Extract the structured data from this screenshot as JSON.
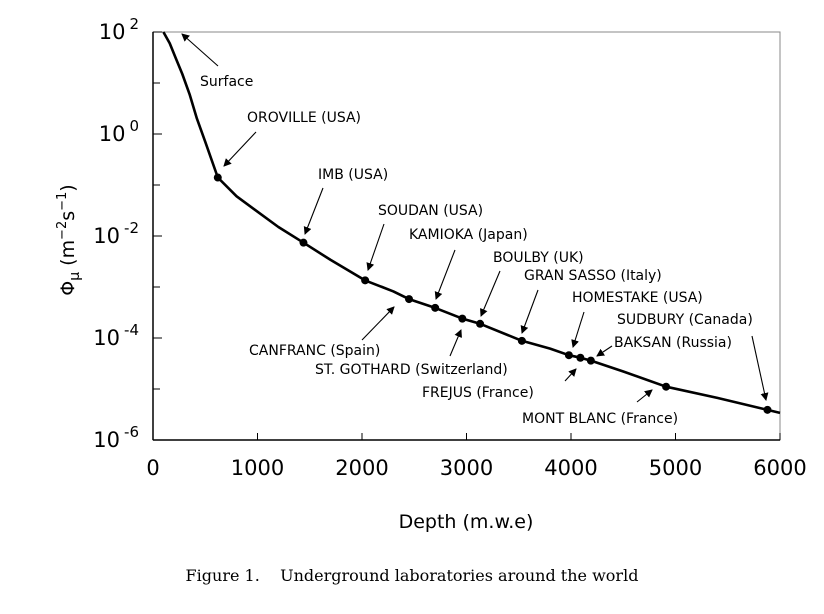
{
  "chart_data": {
    "type": "line",
    "xlabel": "Depth (m.w.e)",
    "ylabel": "Φ",
    "ylabel_sub": "μ",
    "ylabel_units": "(m",
    "ylabel_exp1": "−2",
    "ylabel_mid": "s",
    "ylabel_exp2": "−1",
    "ylabel_close": ")",
    "xlim": [
      0,
      6000
    ],
    "ylim": [
      1e-06,
      100
    ],
    "yscale": "log",
    "grid": false,
    "x_ticks": [
      {
        "value": 0,
        "label": "0"
      },
      {
        "value": 1000,
        "label": "1000"
      },
      {
        "value": 2000,
        "label": "2000"
      },
      {
        "value": 3000,
        "label": "3000"
      },
      {
        "value": 4000,
        "label": "4000"
      },
      {
        "value": 5000,
        "label": "5000"
      },
      {
        "value": 6000,
        "label": "6000"
      }
    ],
    "y_ticks": [
      {
        "value": 100,
        "base": "10",
        "exp": "2"
      },
      {
        "value": 1,
        "base": "10",
        "exp": "0"
      },
      {
        "value": 0.01,
        "base": "10",
        "exp": "-2"
      },
      {
        "value": 0.0001,
        "base": "10",
        "exp": "-4"
      },
      {
        "value": 1e-06,
        "base": "10",
        "exp": "-6"
      }
    ],
    "y_minor_ticks": [
      10,
      0.1,
      0.001,
      1e-05
    ],
    "curve": [
      [
        100,
        100
      ],
      [
        160,
        60
      ],
      [
        220,
        30
      ],
      [
        280,
        15
      ],
      [
        350,
        6
      ],
      [
        420,
        2
      ],
      [
        500,
        0.7
      ],
      [
        620,
        0.14
      ],
      [
        800,
        0.06
      ],
      [
        1000,
        0.03
      ],
      [
        1200,
        0.015
      ],
      [
        1440,
        0.0074
      ],
      [
        1700,
        0.0034
      ],
      [
        2030,
        0.00135
      ],
      [
        2300,
        0.00082
      ],
      [
        2450,
        0.00058
      ],
      [
        2700,
        0.00039
      ],
      [
        2960,
        0.00024
      ],
      [
        3130,
        0.00019
      ],
      [
        3530,
        8.8e-05
      ],
      [
        3800,
        6.2e-05
      ],
      [
        3980,
        4.6e-05
      ],
      [
        4090,
        4.1e-05
      ],
      [
        4190,
        3.6e-05
      ],
      [
        4500,
        2.2e-05
      ],
      [
        4910,
        1.11e-05
      ],
      [
        5400,
        6.7e-06
      ],
      [
        5880,
        3.9e-06
      ],
      [
        6000,
        3.4e-06
      ]
    ],
    "points": [
      {
        "name": "OROVILLE (USA)",
        "x": 620,
        "y": 0.14
      },
      {
        "name": "IMB (USA)",
        "x": 1440,
        "y": 0.0074
      },
      {
        "name": "SOUDAN (USA)",
        "x": 2030,
        "y": 0.00135
      },
      {
        "name": "CANFRANC (Spain)",
        "x": 2450,
        "y": 0.00058
      },
      {
        "name": "KAMIOKA (Japan)",
        "x": 2700,
        "y": 0.00039
      },
      {
        "name": "ST. GOTHARD (Switzerland)",
        "x": 2960,
        "y": 0.00024
      },
      {
        "name": "BOULBY (UK)",
        "x": 3130,
        "y": 0.00019
      },
      {
        "name": "GRAN SASSO (Italy)",
        "x": 3530,
        "y": 8.8e-05
      },
      {
        "name": "HOMESTAKE (USA)",
        "x": 3980,
        "y": 4.6e-05
      },
      {
        "name": "FREJUS (France)",
        "x": 4090,
        "y": 4.1e-05
      },
      {
        "name": "BAKSAN (Russia)",
        "x": 4190,
        "y": 3.6e-05
      },
      {
        "name": "MONT BLANC (France)",
        "x": 4910,
        "y": 1.11e-05
      },
      {
        "name": "SUDBURY (Canada)",
        "x": 5880,
        "y": 3.9e-06
      }
    ],
    "annotations": [
      {
        "text": "Surface",
        "x": 200,
        "y": 100
      },
      {
        "text": "OROVILLE (USA)",
        "x": 620,
        "y": 0.14
      },
      {
        "text": "IMB (USA)",
        "x": 1440,
        "y": 0.0074
      },
      {
        "text": "SOUDAN (USA)",
        "x": 2030,
        "y": 0.00135
      },
      {
        "text": "KAMIOKA (Japan)",
        "x": 2700,
        "y": 0.00039
      },
      {
        "text": "BOULBY (UK)",
        "x": 3130,
        "y": 0.00019
      },
      {
        "text": "GRAN SASSO (Italy)",
        "x": 3530,
        "y": 8.8e-05
      },
      {
        "text": "HOMESTAKE (USA)",
        "x": 3980,
        "y": 4.6e-05
      },
      {
        "text": "SUDBURY (Canada)",
        "x": 5880,
        "y": 3.9e-06
      },
      {
        "text": "BAKSAN (Russia)",
        "x": 4190,
        "y": 3.6e-05
      },
      {
        "text": "CANFRANC (Spain)",
        "x": 2450,
        "y": 0.00058
      },
      {
        "text": "ST. GOTHARD (Switzerland)",
        "x": 2960,
        "y": 0.00024
      },
      {
        "text": "FREJUS (France)",
        "x": 4090,
        "y": 4.1e-05
      },
      {
        "text": "MONT BLANC (France)",
        "x": 4910,
        "y": 1.11e-05
      }
    ],
    "colors": {
      "line": "#000000",
      "frame": "#888888",
      "axis": "#000000"
    }
  },
  "caption": {
    "label": "Figure 1.",
    "text": "Underground laboratories around the world"
  }
}
